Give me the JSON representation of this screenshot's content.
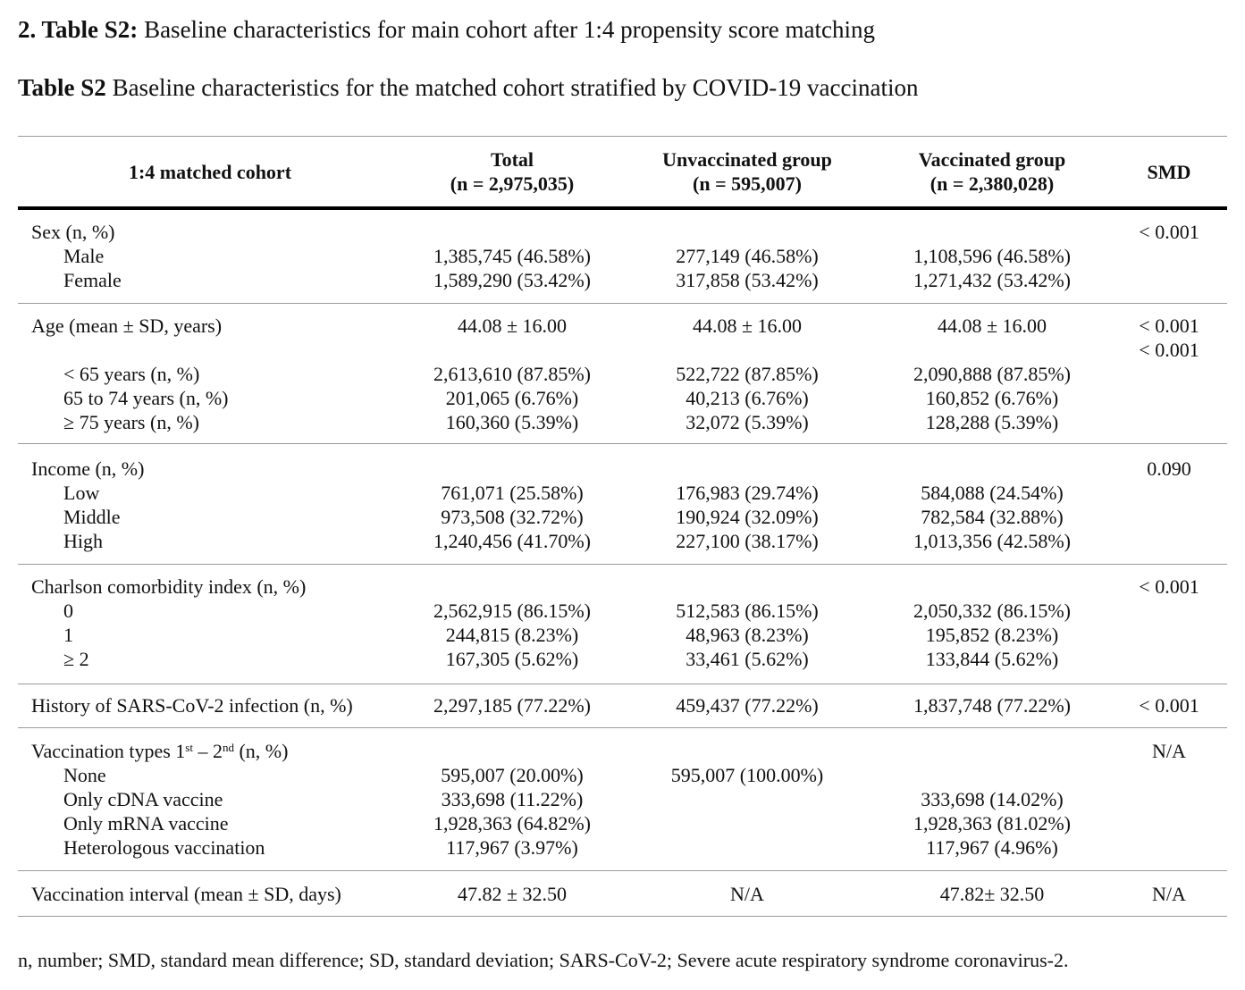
{
  "heading": {
    "prefix": "2. Table S2:",
    "text": " Baseline characteristics for main cohort after 1:4 propensity score matching"
  },
  "caption": {
    "prefix": "Table S2",
    "text": " Baseline characteristics for the matched cohort stratified by COVID-19 vaccination"
  },
  "columns": {
    "label": "1:4 matched cohort",
    "total": {
      "name": "Total",
      "n": "(n = 2,975,035)"
    },
    "unvaccinated": {
      "name": "Unvaccinated group",
      "n": "(n = 595,007)"
    },
    "vaccinated": {
      "name": "Vaccinated group",
      "n": "(n = 2,380,028)"
    },
    "smd": "SMD"
  },
  "sex": {
    "label": "Sex (n, %)",
    "smd": "< 0.001",
    "rows": [
      {
        "label": "Male",
        "total": "1,385,745 (46.58%)",
        "unvax": "277,149 (46.58%)",
        "vax": "1,108,596 (46.58%)"
      },
      {
        "label": "Female",
        "total": "1,589,290 (53.42%)",
        "unvax": "317,858 (53.42%)",
        "vax": "1,271,432 (53.42%)"
      }
    ]
  },
  "age": {
    "label": "Age (mean ± SD, years)",
    "total": "44.08 ± 16.00",
    "unvax": "44.08 ± 16.00",
    "vax": "44.08 ± 16.00",
    "smd": "< 0.001",
    "smd2": "< 0.001",
    "rows": [
      {
        "label": "< 65 years (n, %)",
        "total": "2,613,610 (87.85%)",
        "unvax": "522,722 (87.85%)",
        "vax": "2,090,888 (87.85%)"
      },
      {
        "label": "65 to 74 years (n, %)",
        "total": "201,065 (6.76%)",
        "unvax": "40,213 (6.76%)",
        "vax": "160,852 (6.76%)"
      },
      {
        "label": "≥ 75 years (n, %)",
        "total": "160,360 (5.39%)",
        "unvax": "32,072 (5.39%)",
        "vax": "128,288 (5.39%)"
      }
    ]
  },
  "income": {
    "label": "Income (n, %)",
    "smd": "0.090",
    "rows": [
      {
        "label": "Low",
        "total": "761,071 (25.58%)",
        "unvax": "176,983 (29.74%)",
        "vax": "584,088 (24.54%)"
      },
      {
        "label": "Middle",
        "total": "973,508 (32.72%)",
        "unvax": "190,924 (32.09%)",
        "vax": "782,584 (32.88%)"
      },
      {
        "label": "High",
        "total": "1,240,456 (41.70%)",
        "unvax": "227,100 (38.17%)",
        "vax": "1,013,356 (42.58%)"
      }
    ]
  },
  "cci": {
    "label": "Charlson comorbidity index (n, %)",
    "smd": "< 0.001",
    "rows": [
      {
        "label": "0",
        "total": "2,562,915 (86.15%)",
        "unvax": "512,583 (86.15%)",
        "vax": "2,050,332 (86.15%)"
      },
      {
        "label": "1",
        "total": "244,815 (8.23%)",
        "unvax": "48,963 (8.23%)",
        "vax": "195,852 (8.23%)"
      },
      {
        "label": "≥ 2",
        "total": "167,305 (5.62%)",
        "unvax": "33,461 (5.62%)",
        "vax": "133,844 (5.62%)"
      }
    ]
  },
  "history": {
    "label": "History of SARS-CoV-2 infection (n, %)",
    "total": "2,297,185 (77.22%)",
    "unvax": "459,437 (77.22%)",
    "vax": "1,837,748 (77.22%)",
    "smd": "< 0.001"
  },
  "vtypes": {
    "label_a": "Vaccination types 1",
    "sup1": "st",
    "label_b": " – 2",
    "sup2": "nd",
    "label_c": " (n, %)",
    "smd": "N/A",
    "rows": [
      {
        "label": "None",
        "total": "595,007 (20.00%)",
        "unvax": "595,007 (100.00%)",
        "vax": ""
      },
      {
        "label": "Only cDNA vaccine",
        "total": "333,698 (11.22%)",
        "unvax": "",
        "vax": "333,698 (14.02%)"
      },
      {
        "label": "Only mRNA vaccine",
        "total": "1,928,363 (64.82%)",
        "unvax": "",
        "vax": "1,928,363 (81.02%)"
      },
      {
        "label": "Heterologous vaccination",
        "total": "117,967 (3.97%)",
        "unvax": "",
        "vax": "117,967 (4.96%)"
      }
    ]
  },
  "interval": {
    "label": "Vaccination interval (mean ± SD, days)",
    "total": "47.82 ± 32.50",
    "unvax": "N/A",
    "vax": "47.82± 32.50",
    "smd": "N/A"
  },
  "footnote": "n, number; SMD, standard mean difference; SD, standard deviation; SARS-CoV-2; Severe acute respiratory syndrome coronavirus-2."
}
